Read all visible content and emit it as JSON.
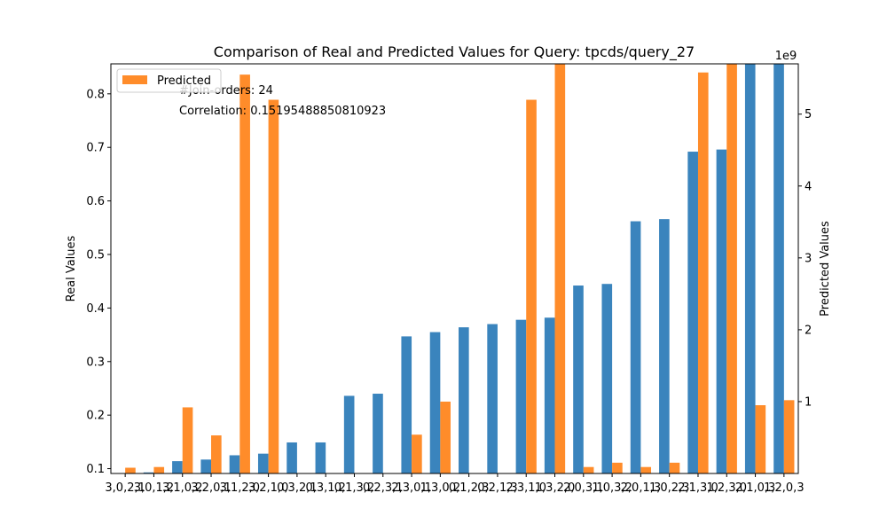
{
  "chart_data": {
    "type": "bar",
    "title": "Comparison of Real and Predicted Values for Query: tpcds/query_27",
    "ylabel_left": "Real Values",
    "ylabel_right": "Predicted Values",
    "right_axis_offset_label": "1e9",
    "annotations": [
      "#Join-orders: 24",
      "Correlation: 0.15195488850810923"
    ],
    "legend": {
      "position": "top-left",
      "entries": [
        "Predicted"
      ]
    },
    "colors": {
      "real": "#3a84bd",
      "predicted": "#ff8c2a"
    },
    "left_ylim": [
      0.091,
      0.856
    ],
    "left_ticks": [
      0.1,
      0.2,
      0.3,
      0.4,
      0.5,
      0.6,
      0.7,
      0.8
    ],
    "right_ylim": [
      0.0,
      5.7
    ],
    "right_ticks": [
      1,
      2,
      3,
      4,
      5
    ],
    "categories": [
      "3,0,2,1",
      "3,0,1,2",
      "3,1,0,2",
      "3,2,0,1",
      "3,1,2,0",
      "3,2,1,0",
      "0,3,2,1",
      "0,3,1,2",
      "0,1,3,2",
      "0,2,3,1",
      "2,3,0,1",
      "1,3,0,2",
      "0,1,2,3",
      "0,2,1,3",
      "2,3,1,0",
      "1,3,2,0",
      "2,0,3,1",
      "1,0,3,2",
      "2,0,1,3",
      "1,0,2,3",
      "2,1,3,0",
      "1,2,3,0",
      "2,1,0,3",
      "1,2,0,3"
    ],
    "series": [
      {
        "name": "Real",
        "axis": "left",
        "values": [
          0.09,
          0.093,
          0.114,
          0.117,
          0.125,
          0.128,
          0.149,
          0.149,
          0.236,
          0.24,
          0.347,
          0.355,
          0.364,
          0.37,
          0.378,
          0.382,
          0.442,
          0.445,
          0.562,
          0.566,
          0.692,
          0.696,
          1.0,
          1.0
        ]
      },
      {
        "name": "Predicted",
        "axis": "right",
        "values": [
          0.08,
          0.09,
          0.92,
          0.53,
          5.55,
          5.2,
          0.0,
          0.0,
          0.0,
          0.0,
          0.54,
          1.0,
          0.0,
          0.0,
          5.2,
          5.7,
          0.09,
          0.15,
          0.09,
          0.15,
          5.58,
          5.7,
          0.95,
          1.02
        ]
      }
    ]
  }
}
